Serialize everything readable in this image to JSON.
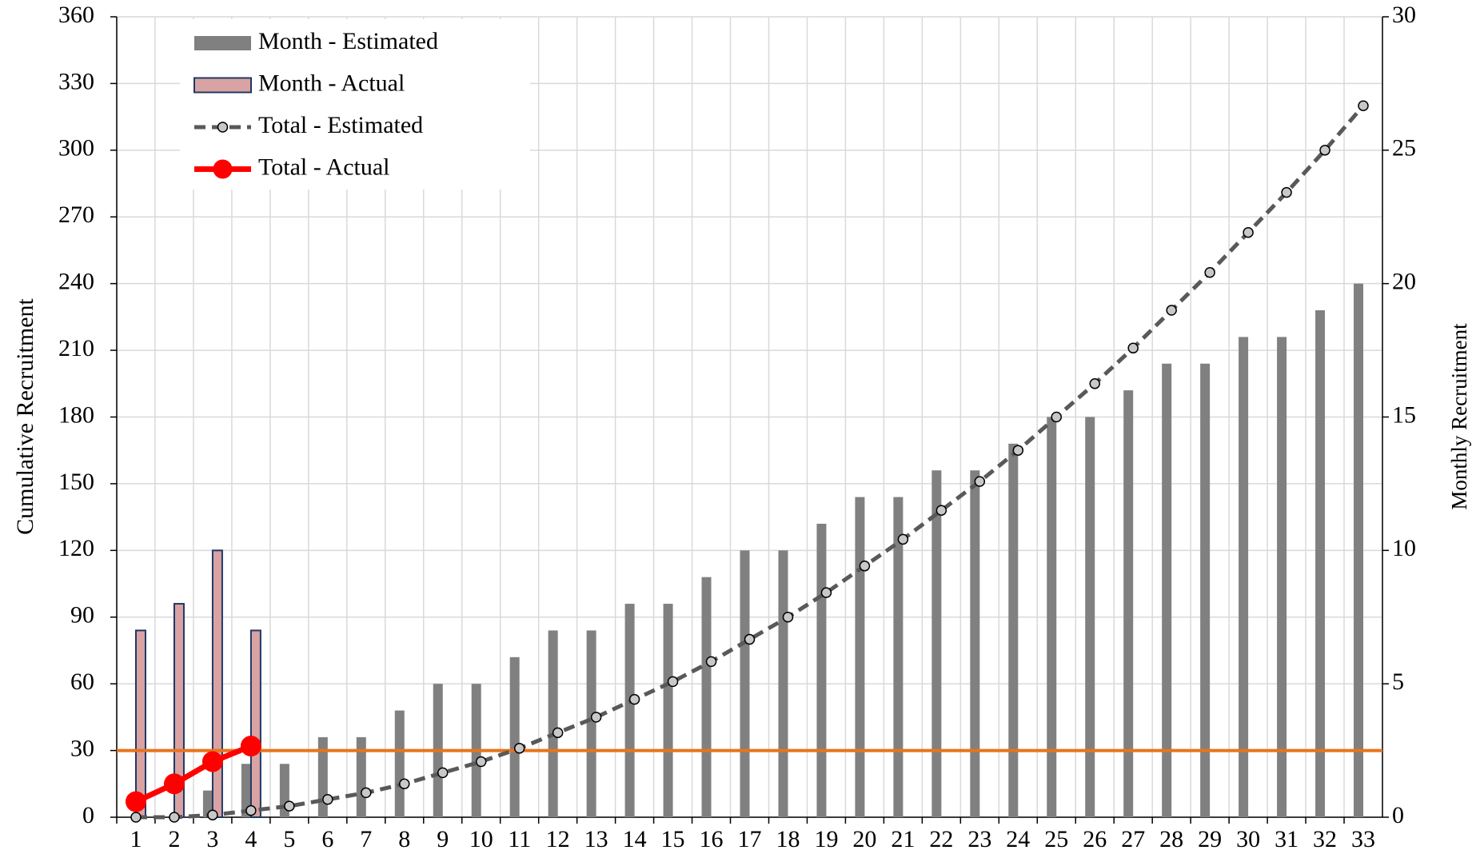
{
  "chart_data": {
    "type": "bar-line",
    "categories": [
      "1",
      "2",
      "3",
      "4",
      "5",
      "6",
      "7",
      "8",
      "9",
      "10",
      "11",
      "12",
      "13",
      "14",
      "15",
      "16",
      "17",
      "18",
      "19",
      "20",
      "21",
      "22",
      "23",
      "24",
      "25",
      "26",
      "27",
      "28",
      "29",
      "30",
      "31",
      "32",
      "33"
    ],
    "series": [
      {
        "name": "Month - Estimated",
        "type": "bar",
        "axis": "y2",
        "color": "#808080",
        "values": [
          0,
          0,
          1,
          2,
          2,
          3,
          3,
          4,
          5,
          5,
          6,
          7,
          7,
          8,
          8,
          9,
          10,
          10,
          11,
          12,
          12,
          13,
          13,
          14,
          15,
          15,
          16,
          17,
          17,
          18,
          18,
          19,
          20
        ]
      },
      {
        "name": "Month - Actual",
        "type": "bar",
        "axis": "y2",
        "color": "#d9a3a3",
        "edge_color": "#1f3864",
        "values": [
          7,
          8,
          10,
          7,
          null,
          null,
          null,
          null,
          null,
          null,
          null,
          null,
          null,
          null,
          null,
          null,
          null,
          null,
          null,
          null,
          null,
          null,
          null,
          null,
          null,
          null,
          null,
          null,
          null,
          null,
          null,
          null,
          null
        ]
      },
      {
        "name": "Total - Estimated",
        "type": "line",
        "axis": "y",
        "color": "#595959",
        "dashed": true,
        "values": [
          0,
          0,
          1,
          3,
          5,
          8,
          11,
          15,
          20,
          25,
          31,
          38,
          45,
          53,
          61,
          70,
          80,
          90,
          101,
          113,
          125,
          138,
          151,
          165,
          180,
          195,
          211,
          228,
          245,
          263,
          281,
          300,
          320
        ]
      },
      {
        "name": "Total - Actual",
        "type": "line",
        "axis": "y",
        "color": "#ff0000",
        "values": [
          7,
          15,
          25,
          32,
          null,
          null,
          null,
          null,
          null,
          null,
          null,
          null,
          null,
          null,
          null,
          null,
          null,
          null,
          null,
          null,
          null,
          null,
          null,
          null,
          null,
          null,
          null,
          null,
          null,
          null,
          null,
          null,
          null
        ]
      }
    ],
    "reference_line": {
      "value": 30,
      "color": "#e8731c"
    },
    "y_label": "Cumulative Recruitment",
    "y2_label": "Monthly Recruitment",
    "ylim": [
      0,
      360
    ],
    "yticks": [
      0,
      30,
      60,
      90,
      120,
      150,
      180,
      210,
      240,
      270,
      300,
      330,
      360
    ],
    "y2lim": [
      0,
      30
    ],
    "y2ticks": [
      0,
      5,
      10,
      15,
      20,
      25,
      30
    ],
    "grid": true,
    "legend": "upper left"
  }
}
